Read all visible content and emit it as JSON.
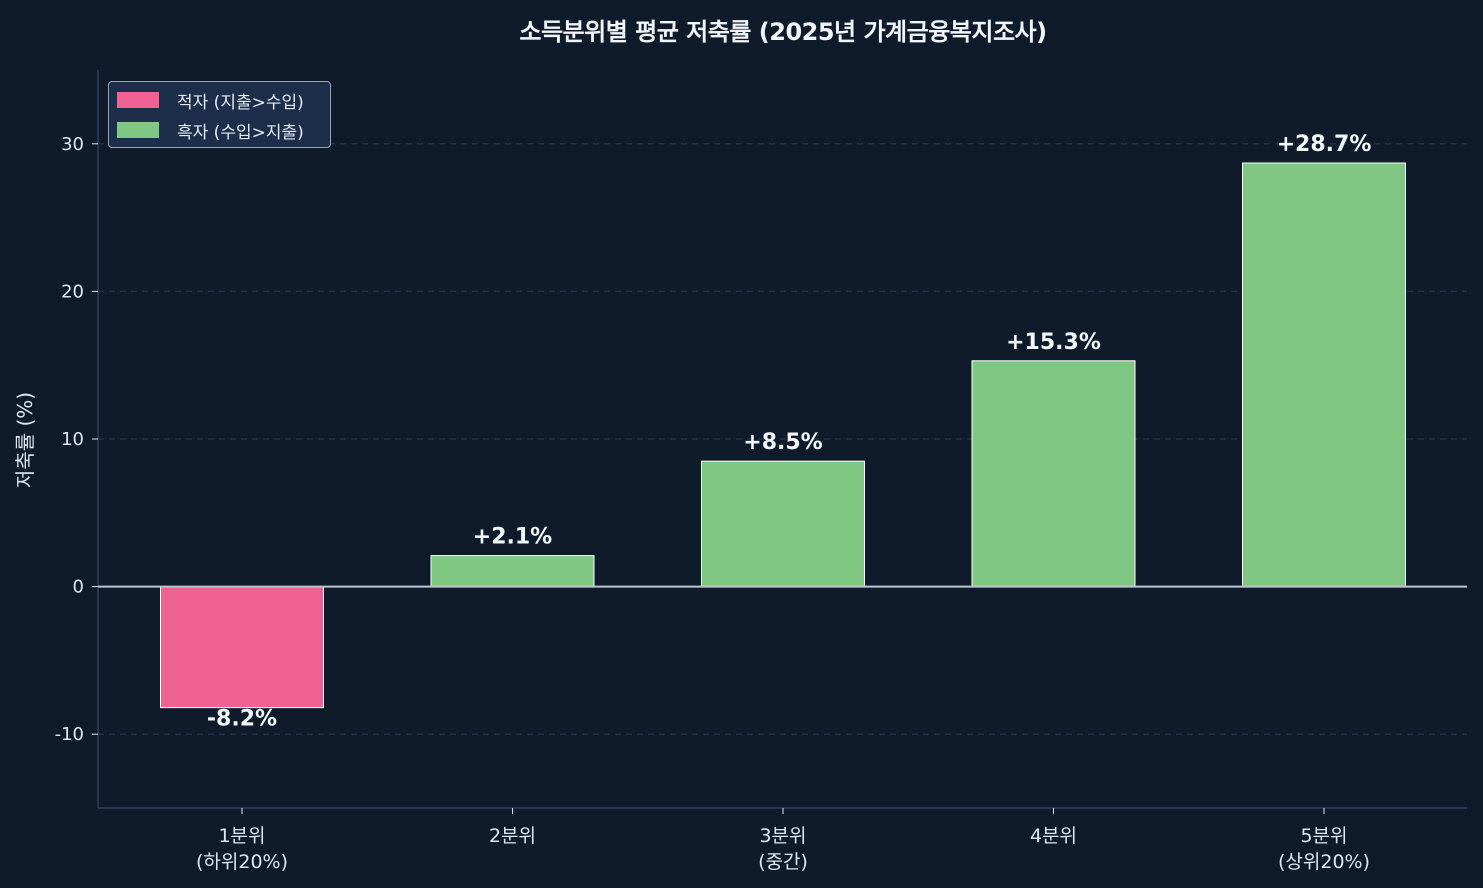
{
  "chart_data": {
    "type": "bar",
    "title": "소득분위별 평균 저축률 (2025년 가계금융복지조사)",
    "xlabel": "",
    "ylabel": "저축률 (%)",
    "categories": [
      "1분위\n(하위20%)",
      "2분위",
      "3분위\n(중간)",
      "4분위",
      "5분위\n(상위20%)"
    ],
    "category_lines": [
      [
        "1분위",
        "(하위20%)"
      ],
      [
        "2분위",
        ""
      ],
      [
        "3분위",
        "(중간)"
      ],
      [
        "4분위",
        ""
      ],
      [
        "5분위",
        "(상위20%)"
      ]
    ],
    "values": [
      -8.2,
      2.1,
      8.5,
      15.3,
      28.7
    ],
    "value_labels": [
      "-8.2%",
      "+2.1%",
      "+8.5%",
      "+15.3%",
      "+28.7%"
    ],
    "ylim": [
      -15,
      35
    ],
    "yticks": [
      -10,
      0,
      10,
      20,
      30
    ],
    "ytick_labels": [
      "-10",
      "0",
      "10",
      "20",
      "30"
    ],
    "grid": {
      "y": true,
      "style": "dashed"
    },
    "legend": {
      "position": "upper left",
      "entries": [
        {
          "label": "적자 (지출>수입)",
          "color": "#f06292"
        },
        {
          "label": "흑자 (수입>지출)",
          "color": "#81c784"
        }
      ]
    },
    "colors": {
      "negative": "#f06292",
      "positive": "#81c784",
      "background": "#0f1b2b",
      "grid": "#1e3150",
      "zero_line": "#c0c4cc",
      "spine": "#2a4066"
    }
  }
}
